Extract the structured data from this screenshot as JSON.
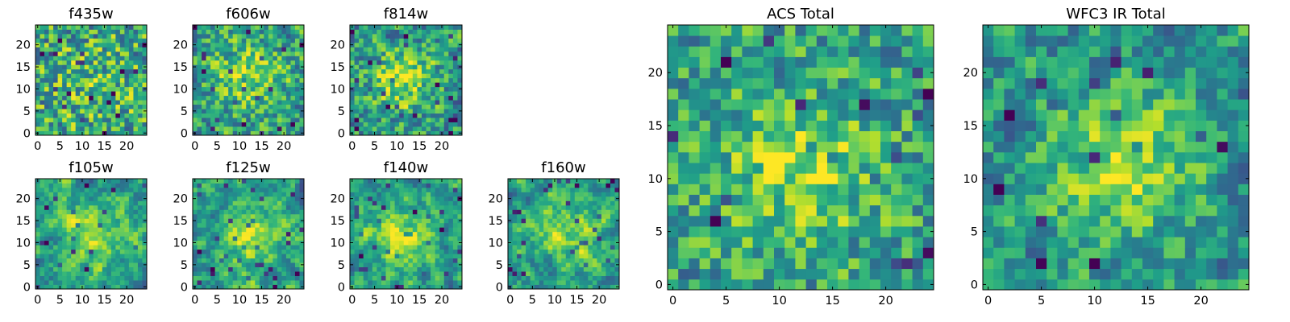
{
  "chart_data": [
    {
      "type": "heatmap",
      "title": "f435w",
      "xticks": [
        "0",
        "5",
        "10",
        "15",
        "20"
      ],
      "yticks": [
        "0",
        "5",
        "10",
        "15",
        "20"
      ],
      "xlim": [
        -0.5,
        24.5
      ],
      "ylim": [
        -0.5,
        24.5
      ],
      "pattern": {
        "seed": 11,
        "center": [
          12,
          12
        ],
        "sigma": 6.5,
        "strength": 0.1,
        "base": 0.6,
        "smooth": 0.0,
        "noise": 0.34
      }
    },
    {
      "type": "heatmap",
      "title": "f606w",
      "xticks": [
        "0",
        "5",
        "10",
        "15",
        "20"
      ],
      "yticks": [
        "0",
        "5",
        "10",
        "15",
        "20"
      ],
      "xlim": [
        -0.5,
        24.5
      ],
      "ylim": [
        -0.5,
        24.5
      ],
      "pattern": {
        "seed": 23,
        "center": [
          12,
          13
        ],
        "sigma": 5.5,
        "strength": 0.28,
        "base": 0.55,
        "smooth": 0.2,
        "noise": 0.32
      }
    },
    {
      "type": "heatmap",
      "title": "f814w",
      "xticks": [
        "0",
        "5",
        "10",
        "15",
        "20"
      ],
      "yticks": [
        "0",
        "5",
        "10",
        "15",
        "20"
      ],
      "xlim": [
        -0.5,
        24.5
      ],
      "ylim": [
        -0.5,
        24.5
      ],
      "pattern": {
        "seed": 37,
        "center": [
          11,
          12
        ],
        "sigma": 5.0,
        "strength": 0.35,
        "base": 0.52,
        "smooth": 0.2,
        "noise": 0.32
      }
    },
    {
      "type": "heatmap",
      "title": "f105w",
      "xticks": [
        "0",
        "5",
        "10",
        "15",
        "20"
      ],
      "yticks": [
        "0",
        "5",
        "10",
        "15",
        "20"
      ],
      "xlim": [
        -0.5,
        24.5
      ],
      "ylim": [
        -0.5,
        24.5
      ],
      "pattern": {
        "seed": 41,
        "center": [
          13,
          12
        ],
        "sigma": 5.0,
        "strength": 0.32,
        "base": 0.55,
        "smooth": 0.55,
        "noise": 0.3
      }
    },
    {
      "type": "heatmap",
      "title": "f125w",
      "xticks": [
        "0",
        "5",
        "10",
        "15",
        "20"
      ],
      "yticks": [
        "0",
        "5",
        "10",
        "15",
        "20"
      ],
      "xlim": [
        -0.5,
        24.5
      ],
      "ylim": [
        -0.5,
        24.5
      ],
      "pattern": {
        "seed": 53,
        "center": [
          13,
          11
        ],
        "sigma": 5.0,
        "strength": 0.32,
        "base": 0.55,
        "smooth": 0.55,
        "noise": 0.3
      }
    },
    {
      "type": "heatmap",
      "title": "f140w",
      "xticks": [
        "0",
        "5",
        "10",
        "15",
        "20"
      ],
      "yticks": [
        "0",
        "5",
        "10",
        "15",
        "20"
      ],
      "xlim": [
        -0.5,
        24.5
      ],
      "ylim": [
        -0.5,
        24.5
      ],
      "pattern": {
        "seed": 67,
        "center": [
          11,
          11
        ],
        "sigma": 5.0,
        "strength": 0.32,
        "base": 0.55,
        "smooth": 0.55,
        "noise": 0.3
      }
    },
    {
      "type": "heatmap",
      "title": "f160w",
      "xticks": [
        "0",
        "5",
        "10",
        "15",
        "20"
      ],
      "yticks": [
        "0",
        "5",
        "10",
        "15",
        "20"
      ],
      "xlim": [
        -0.5,
        24.5
      ],
      "ylim": [
        -0.5,
        24.5
      ],
      "pattern": {
        "seed": 79,
        "center": [
          12,
          12
        ],
        "sigma": 5.0,
        "strength": 0.3,
        "base": 0.55,
        "smooth": 0.55,
        "noise": 0.3
      }
    },
    {
      "type": "heatmap",
      "title": "ACS Total",
      "xticks": [
        "0",
        "5",
        "10",
        "15",
        "20"
      ],
      "yticks": [
        "0",
        "5",
        "10",
        "15",
        "20"
      ],
      "xlim": [
        -0.5,
        24.5
      ],
      "ylim": [
        -0.5,
        24.5
      ],
      "pattern": {
        "seed": 97,
        "center": [
          12,
          11
        ],
        "sigma": 5.0,
        "strength": 0.3,
        "base": 0.56,
        "smooth": 0.15,
        "noise": 0.3
      }
    },
    {
      "type": "heatmap",
      "title": "WFC3 IR Total",
      "xticks": [
        "0",
        "5",
        "10",
        "15",
        "20"
      ],
      "yticks": [
        "0",
        "5",
        "10",
        "15",
        "20"
      ],
      "xlim": [
        -0.5,
        24.5
      ],
      "ylim": [
        -0.5,
        24.5
      ],
      "pattern": {
        "seed": 113,
        "center": [
          13,
          11
        ],
        "sigma": 4.5,
        "strength": 0.38,
        "base": 0.52,
        "smooth": 0.35,
        "noise": 0.3
      }
    }
  ],
  "colormap": "viridis"
}
